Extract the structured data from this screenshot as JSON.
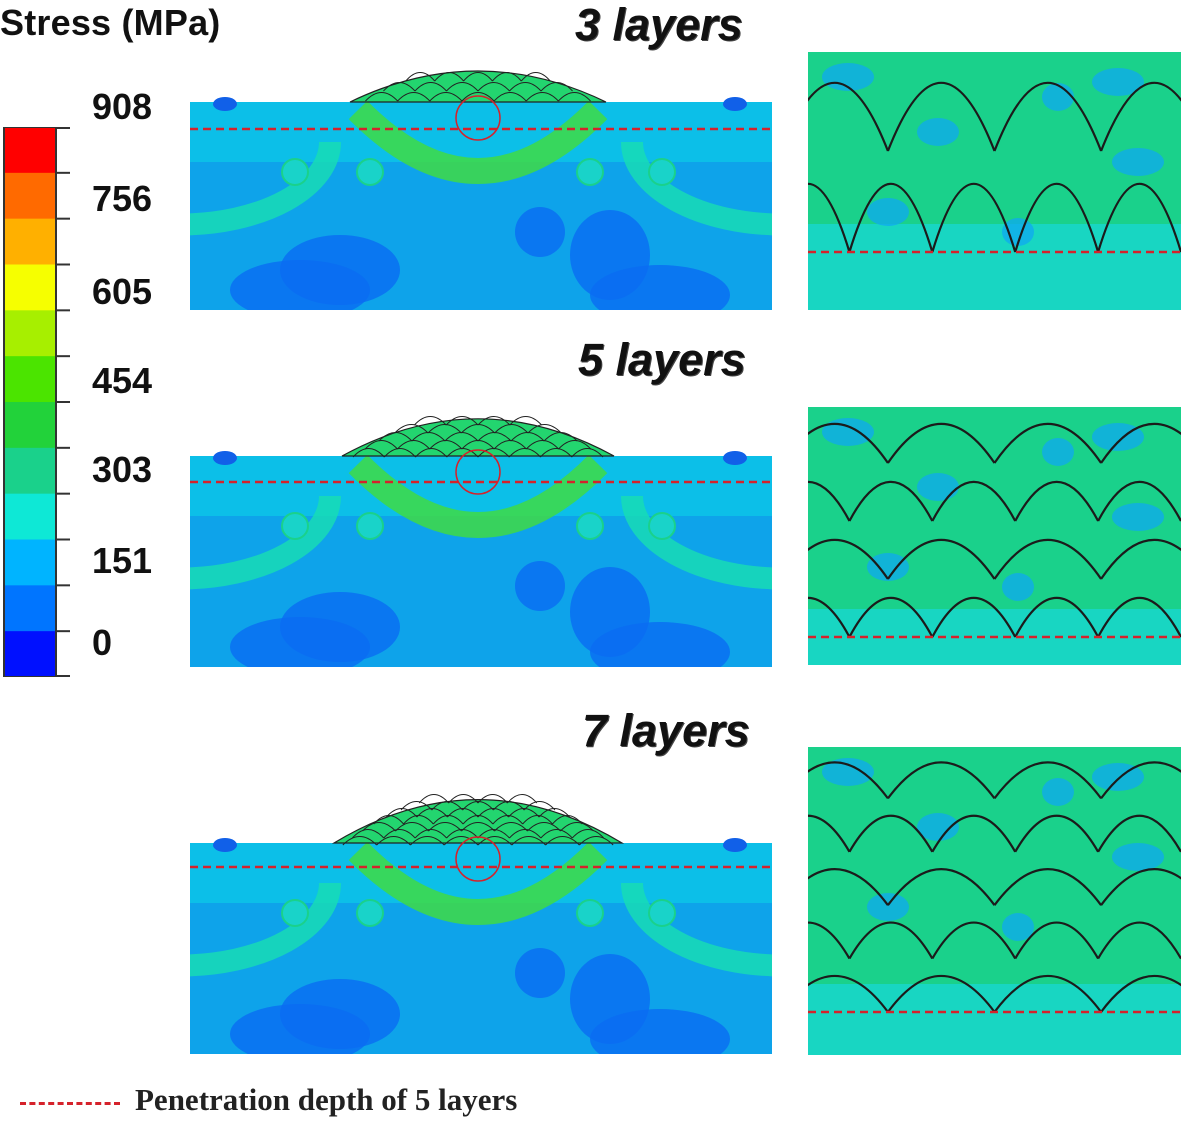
{
  "legend": {
    "title": "Stress (MPa)",
    "ticks": [
      "908",
      "756",
      "605",
      "454",
      "303",
      "151",
      "0"
    ],
    "colors": [
      "#ff0000",
      "#ff6a00",
      "#ffb000",
      "#f6ff00",
      "#a7ef00",
      "#4be400",
      "#22d23a",
      "#1ad18b",
      "#0ee8d6",
      "#00b4ff",
      "#0075ff",
      "#0010ff"
    ]
  },
  "panels": [
    {
      "title": "3 layers",
      "layers": 3
    },
    {
      "title": "5 layers",
      "layers": 5
    },
    {
      "title": "7 layers",
      "layers": 7
    }
  ],
  "footnote": {
    "text": "Penetration depth of 5 layers",
    "line_color": "#d5222b"
  }
}
